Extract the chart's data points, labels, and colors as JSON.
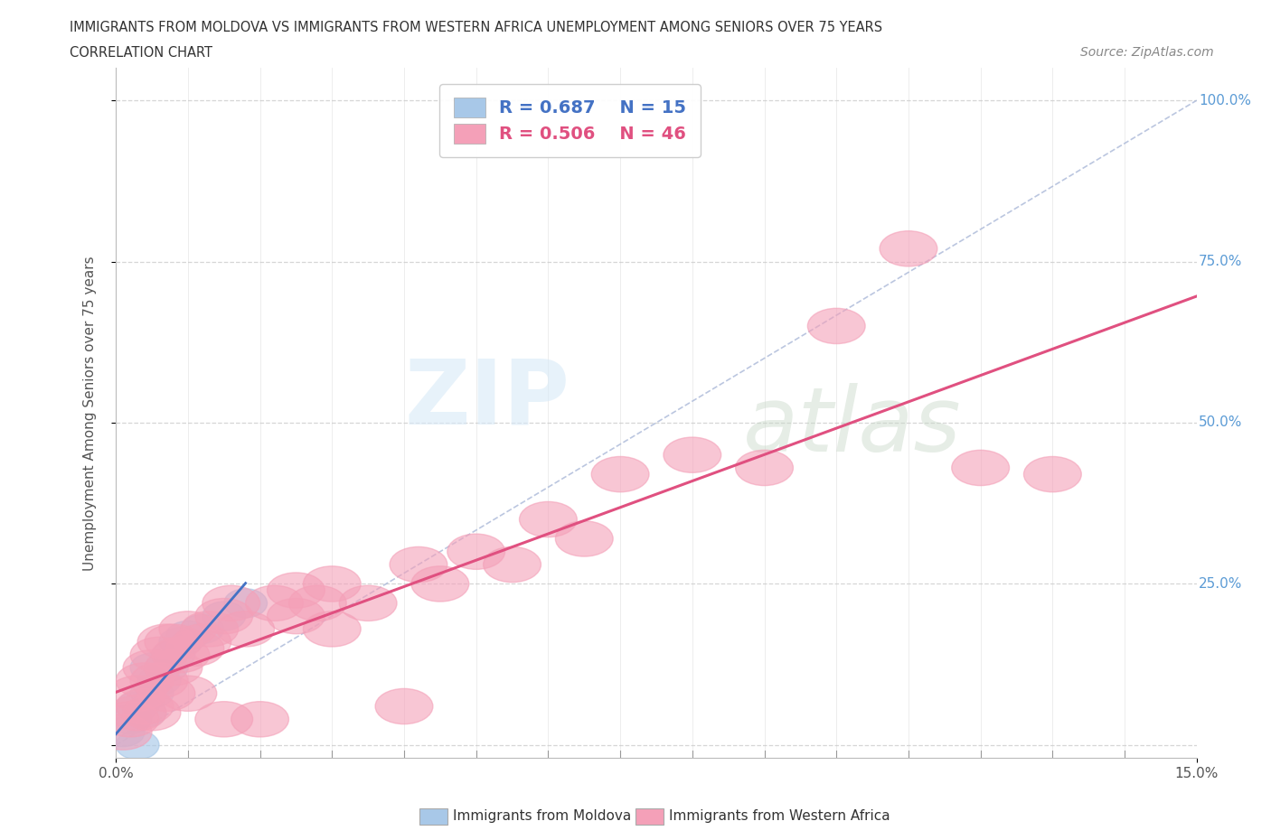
{
  "title_line1": "IMMIGRANTS FROM MOLDOVA VS IMMIGRANTS FROM WESTERN AFRICA UNEMPLOYMENT AMONG SENIORS OVER 75 YEARS",
  "title_line2": "CORRELATION CHART",
  "source": "Source: ZipAtlas.com",
  "ylabel": "Unemployment Among Seniors over 75 years",
  "xlim": [
    0.0,
    0.15
  ],
  "ylim": [
    -0.02,
    1.05
  ],
  "moldova_R": 0.687,
  "moldova_N": 15,
  "western_africa_R": 0.506,
  "western_africa_N": 46,
  "moldova_color": "#a8c8e8",
  "moldova_line_color": "#4472c4",
  "western_africa_color": "#f4a0b8",
  "western_africa_line_color": "#e05080",
  "moldova_x": [
    0.001,
    0.002,
    0.003,
    0.003,
    0.004,
    0.005,
    0.005,
    0.006,
    0.007,
    0.008,
    0.009,
    0.01,
    0.012,
    0.015,
    0.018
  ],
  "moldova_y": [
    0.02,
    0.04,
    0.0,
    0.06,
    0.05,
    0.08,
    0.12,
    0.1,
    0.12,
    0.14,
    0.16,
    0.17,
    0.18,
    0.2,
    0.22
  ],
  "western_africa_x": [
    0.001,
    0.002,
    0.003,
    0.003,
    0.004,
    0.004,
    0.005,
    0.005,
    0.006,
    0.006,
    0.007,
    0.007,
    0.008,
    0.008,
    0.009,
    0.01,
    0.01,
    0.011,
    0.012,
    0.013,
    0.015,
    0.015,
    0.016,
    0.018,
    0.02,
    0.022,
    0.025,
    0.025,
    0.028,
    0.03,
    0.03,
    0.035,
    0.04,
    0.042,
    0.045,
    0.05,
    0.055,
    0.06,
    0.065,
    0.07,
    0.08,
    0.09,
    0.1,
    0.11,
    0.12,
    0.13
  ],
  "western_africa_y": [
    0.02,
    0.04,
    0.05,
    0.08,
    0.06,
    0.1,
    0.05,
    0.12,
    0.1,
    0.14,
    0.08,
    0.16,
    0.12,
    0.16,
    0.14,
    0.08,
    0.18,
    0.15,
    0.16,
    0.18,
    0.04,
    0.2,
    0.22,
    0.18,
    0.04,
    0.22,
    0.2,
    0.24,
    0.22,
    0.18,
    0.25,
    0.22,
    0.06,
    0.28,
    0.25,
    0.3,
    0.28,
    0.35,
    0.32,
    0.42,
    0.45,
    0.43,
    0.65,
    0.77,
    0.43,
    0.42
  ],
  "watermark_zip": "ZIP",
  "watermark_atlas": "atlas",
  "background_color": "#ffffff",
  "grid_color": "#cccccc",
  "ytick_values": [
    0.0,
    0.25,
    0.5,
    0.75,
    1.0
  ],
  "ytick_labels": [
    "",
    "25.0%",
    "50.0%",
    "75.0%",
    "100.0%"
  ]
}
